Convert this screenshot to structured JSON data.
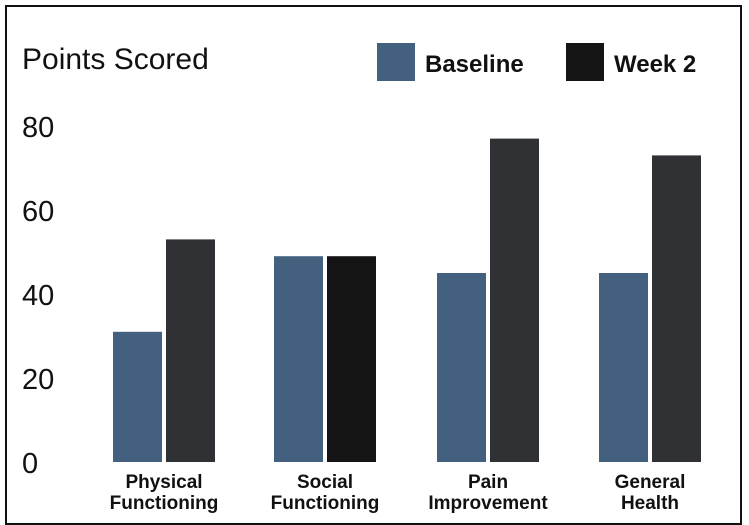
{
  "chart_data": {
    "type": "bar",
    "title": "",
    "ylabel": "Points Scored",
    "xlabel": "",
    "ylim": [
      0,
      85
    ],
    "yticks": [
      0,
      20,
      40,
      60,
      80
    ],
    "grid": false,
    "legend_position": "top-right",
    "categories": [
      [
        "Physical",
        "Functioning"
      ],
      [
        "Social",
        "Functioning"
      ],
      [
        "Pain",
        "Improvement"
      ],
      [
        "General",
        "Health"
      ]
    ],
    "series": [
      {
        "name": "Baseline",
        "color": "#44607f",
        "values": [
          31,
          49,
          45,
          45
        ]
      },
      {
        "name": "Week 2",
        "color": "#2f3135",
        "values": [
          53,
          49,
          77,
          73
        ]
      }
    ],
    "bar_colors_override": {
      "1:1": "#141414"
    }
  }
}
